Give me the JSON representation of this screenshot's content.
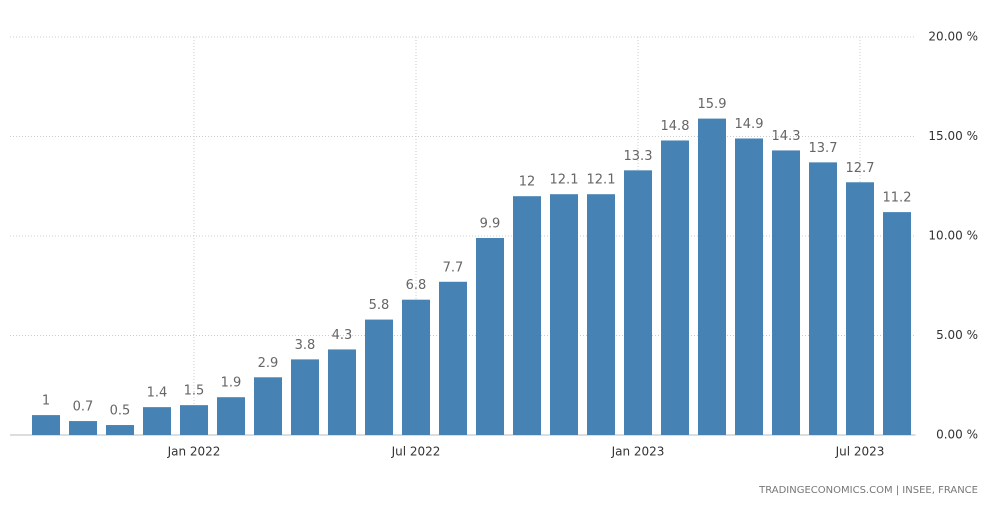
{
  "chart_data": {
    "type": "bar",
    "categories": [
      null,
      null,
      null,
      null,
      "Jan 2022",
      null,
      null,
      null,
      null,
      null,
      "Jul 2022",
      null,
      null,
      null,
      null,
      null,
      "Jan 2023",
      null,
      null,
      null,
      null,
      null,
      "Jul 2023",
      null
    ],
    "values": [
      1,
      0.7,
      0.5,
      1.4,
      1.5,
      1.9,
      2.9,
      3.8,
      4.3,
      5.8,
      6.8,
      7.7,
      9.9,
      12,
      12.1,
      12.1,
      13.3,
      14.8,
      15.9,
      14.9,
      14.3,
      13.7,
      12.7,
      11.2
    ],
    "color": "#4682b4",
    "ylim": [
      0,
      20
    ],
    "yticks": [
      {
        "value": 0,
        "label": "0.00 %"
      },
      {
        "value": 5,
        "label": "5.00 %"
      },
      {
        "value": 10,
        "label": "10.00 %"
      },
      {
        "value": 15,
        "label": "15.00 %"
      },
      {
        "value": 20,
        "label": "20.00 %"
      }
    ],
    "grid": true,
    "source": "TRADINGECONOMICS.COM | INSEE, FRANCE"
  }
}
